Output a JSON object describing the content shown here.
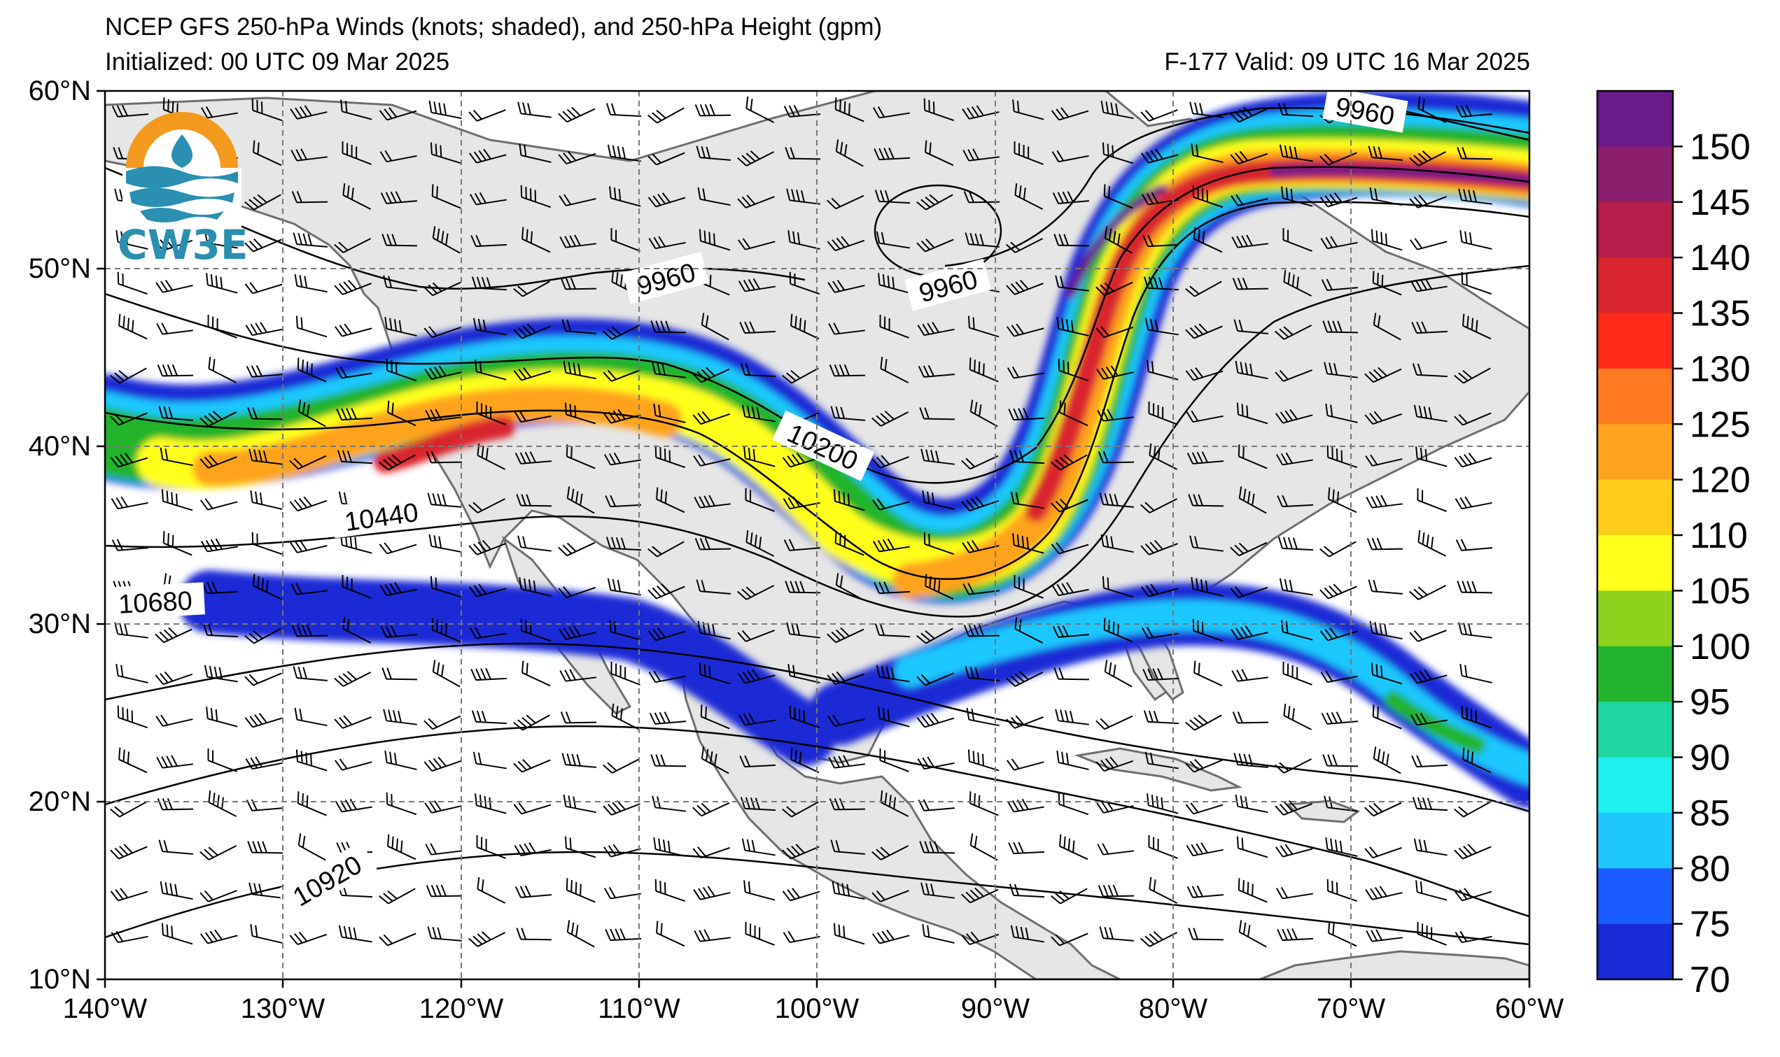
{
  "header": {
    "title": "NCEP GFS 250-hPa Winds (knots; shaded), and 250-hPa Height (gpm)",
    "initialized": "Initialized: 00 UTC 09 Mar 2025",
    "valid": "F-177  Valid: 09 UTC 16 Mar 2025"
  },
  "logo": {
    "text": "CW3E",
    "icon": "cw3e-logo-icon"
  },
  "axes": {
    "lat_labels": [
      "60°N",
      "50°N",
      "40°N",
      "30°N",
      "20°N",
      "10°N"
    ],
    "lon_labels": [
      "140°W",
      "130°W",
      "120°W",
      "110°W",
      "100°W",
      "90°W",
      "80°W",
      "70°W",
      "60°W"
    ],
    "lat_range": [
      10,
      60
    ],
    "lon_range": [
      -140,
      -60
    ]
  },
  "contour_labels": [
    "9960",
    "9960",
    "9960",
    "10200",
    "10440",
    "10680",
    "10920"
  ],
  "colorbar": {
    "labels": [
      "150",
      "145",
      "140",
      "135",
      "130",
      "125",
      "120",
      "110",
      "105",
      "100",
      "95",
      "90",
      "85",
      "80",
      "75",
      "70"
    ],
    "colors": [
      "#6a1a8a",
      "#8b1f6e",
      "#b51e4a",
      "#d9252e",
      "#ff2a1a",
      "#ff7a20",
      "#ffa31e",
      "#ffcc1a",
      "#ffff1a",
      "#8fd21e",
      "#22b42c",
      "#1fd6a0",
      "#1ff0f0",
      "#1ec8ff",
      "#1a5cff",
      "#1a2ad6"
    ]
  }
}
